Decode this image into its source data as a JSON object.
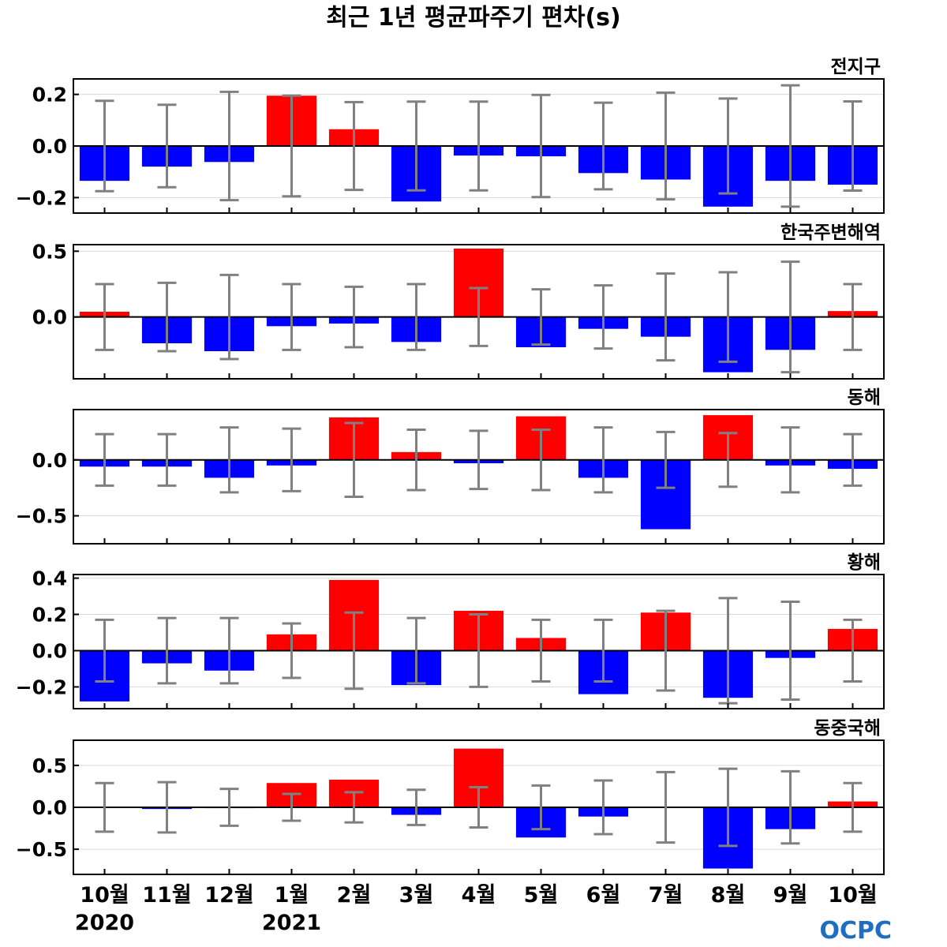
{
  "title": "최근 1년 평균파주기 편차(s)",
  "colors": {
    "positive": "#ff0000",
    "negative": "#0000ff",
    "errorbar": "#808080",
    "grid": "#d9d9d9",
    "zero_line": "#000000"
  },
  "logo": {
    "text": "OCPC",
    "color": "#1f6fc0"
  },
  "chart_data": {
    "type": "bar",
    "categories": [
      "10월",
      "11월",
      "12월",
      "1월",
      "2월",
      "3월",
      "4월",
      "5월",
      "6월",
      "7월",
      "8월",
      "9월",
      "10월"
    ],
    "year_labels": [
      {
        "index": 0,
        "label": "2020"
      },
      {
        "index": 3,
        "label": "2021"
      }
    ],
    "panels": [
      {
        "name": "전지구",
        "ylim": [
          -0.26,
          0.26
        ],
        "yticks": [
          -0.2,
          0.0,
          0.2
        ],
        "ytick_labels": [
          "−0.2",
          "0.0",
          "0.2"
        ],
        "values": [
          -0.135,
          -0.08,
          -0.062,
          0.195,
          0.065,
          -0.215,
          -0.037,
          -0.04,
          -0.105,
          -0.13,
          -0.235,
          -0.135,
          -0.15
        ],
        "error_bars": [
          0.175,
          0.16,
          0.21,
          0.195,
          0.17,
          0.172,
          0.172,
          0.198,
          0.168,
          0.207,
          0.184,
          0.235,
          0.173
        ],
        "grid": true
      },
      {
        "name": "한국주변해역",
        "ylim": [
          -0.47,
          0.55
        ],
        "yticks": [
          0.0,
          0.5
        ],
        "ytick_labels": [
          "0.0",
          "0.5"
        ],
        "values": [
          0.04,
          -0.2,
          -0.26,
          -0.07,
          -0.05,
          -0.19,
          0.52,
          -0.23,
          -0.09,
          -0.15,
          -0.42,
          -0.25,
          0.045
        ],
        "error_bars": [
          0.25,
          0.26,
          0.32,
          0.25,
          0.23,
          0.25,
          0.22,
          0.21,
          0.24,
          0.33,
          0.34,
          0.42,
          0.25
        ],
        "grid": true
      },
      {
        "name": "동해",
        "ylim": [
          -0.75,
          0.45
        ],
        "yticks": [
          -0.5,
          0.0
        ],
        "ytick_labels": [
          "−0.5",
          "0.0"
        ],
        "values": [
          -0.06,
          -0.06,
          -0.16,
          -0.05,
          0.38,
          0.07,
          -0.03,
          0.39,
          -0.16,
          -0.62,
          0.4,
          -0.05,
          -0.08
        ],
        "error_bars": [
          0.23,
          0.23,
          0.29,
          0.28,
          0.33,
          0.27,
          0.26,
          0.27,
          0.29,
          0.25,
          0.24,
          0.29,
          0.23
        ],
        "grid": true
      },
      {
        "name": "황해",
        "ylim": [
          -0.32,
          0.42
        ],
        "yticks": [
          -0.2,
          0.0,
          0.2,
          0.4
        ],
        "ytick_labels": [
          "−0.2",
          "0.0",
          "0.2",
          "0.4"
        ],
        "values": [
          -0.28,
          -0.07,
          -0.11,
          0.09,
          0.39,
          -0.19,
          0.22,
          0.07,
          -0.24,
          0.21,
          -0.26,
          -0.04,
          0.12
        ],
        "error_bars": [
          0.17,
          0.18,
          0.18,
          0.15,
          0.21,
          0.18,
          0.2,
          0.17,
          0.17,
          0.22,
          0.29,
          0.27,
          0.17
        ],
        "grid": true
      },
      {
        "name": "동중국해",
        "ylim": [
          -0.8,
          0.8
        ],
        "yticks": [
          -0.5,
          0.0,
          0.5
        ],
        "ytick_labels": [
          "−0.5",
          "0.0",
          "0.5"
        ],
        "values": [
          0.0,
          -0.02,
          -0.01,
          0.29,
          0.33,
          -0.09,
          0.7,
          -0.36,
          -0.11,
          0.0,
          -0.73,
          -0.26,
          0.07
        ],
        "error_bars": [
          0.29,
          0.3,
          0.22,
          0.16,
          0.18,
          0.21,
          0.24,
          0.26,
          0.32,
          0.42,
          0.46,
          0.43,
          0.29
        ],
        "grid": true
      }
    ]
  }
}
